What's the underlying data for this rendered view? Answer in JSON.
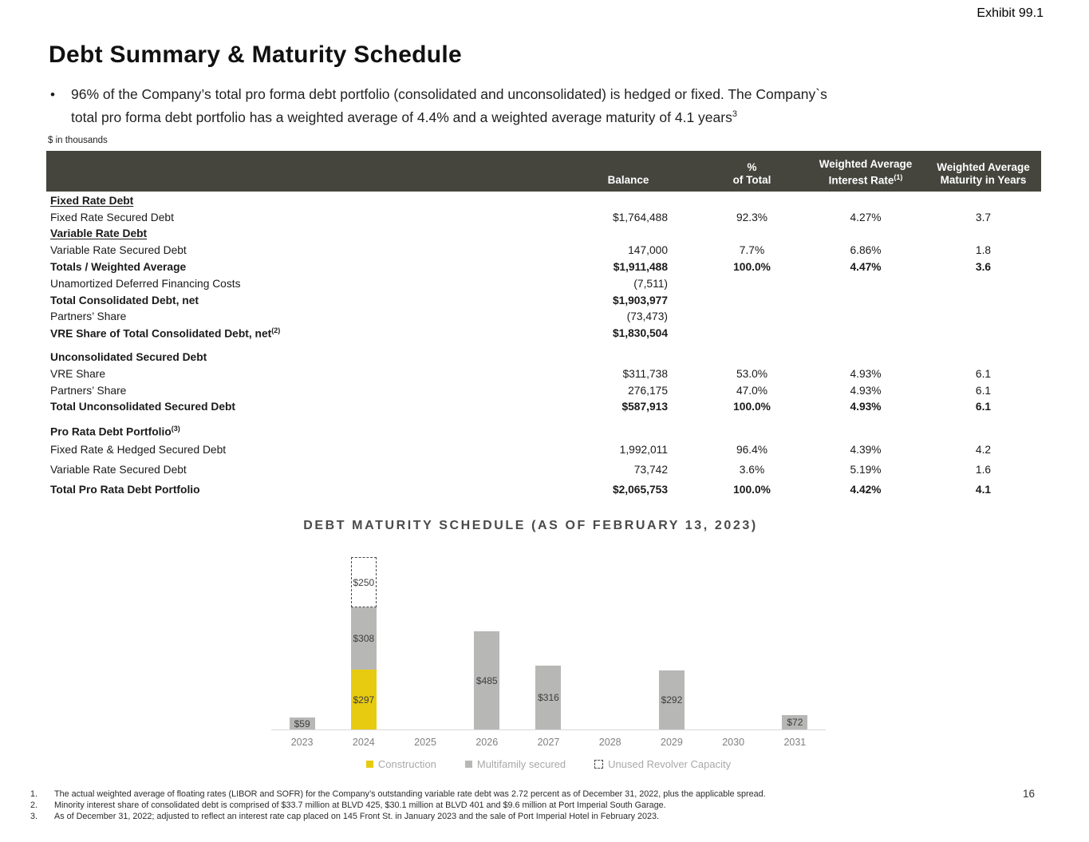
{
  "header": {
    "exhibit": "Exhibit 99.1",
    "title": "Debt Summary & Maturity Schedule",
    "bullet_line1": "96% of the Company’s total pro forma debt portfolio (consolidated and unconsolidated) is hedged or fixed. The Company`s",
    "bullet_line2": "total pro forma debt portfolio has a weighted average of 4.4% and a weighted average maturity of 4.1 years",
    "bullet_sup": "3"
  },
  "table": {
    "units": "$ in thousands",
    "header": {
      "balance": "Balance",
      "pct_line1": "%",
      "pct_line2": "of Total",
      "rate_line1": "Weighted Average",
      "rate_line2": "Interest Rate",
      "rate_sup": "(1)",
      "maturity_line1": "Weighted Average",
      "maturity_line2": "Maturity in Years"
    },
    "rows": [
      {
        "label": "Fixed Rate Debt",
        "bold": true,
        "underline": true,
        "balance": "",
        "pct": "",
        "rate": "",
        "maturity": ""
      },
      {
        "label": "Fixed Rate Secured Debt",
        "balance": "$1,764,488",
        "pct": "92.3%",
        "rate": "4.27%",
        "maturity": "3.7"
      },
      {
        "label": "Variable Rate Debt",
        "bold": true,
        "underline": true,
        "balance": "",
        "pct": "",
        "rate": "",
        "maturity": ""
      },
      {
        "label": "Variable Rate Secured Debt",
        "balance": "147,000",
        "pct": "7.7%",
        "rate": "6.86%",
        "maturity": "1.8"
      },
      {
        "label": "Totals / Weighted Average",
        "bold": true,
        "balance": "$1,911,488",
        "pct": "100.0%",
        "rate": "4.47%",
        "maturity": "3.6"
      },
      {
        "label": "Unamortized Deferred Financing Costs",
        "balance": "(7,511)",
        "pct": "",
        "rate": "",
        "maturity": ""
      },
      {
        "label": "Total Consolidated Debt, net",
        "bold": true,
        "balance": "$1,903,977",
        "pct": "",
        "rate": "",
        "maturity": ""
      },
      {
        "label": "Partners’ Share",
        "balance": "(73,473)",
        "pct": "",
        "rate": "",
        "maturity": ""
      },
      {
        "label": "VRE Share of Total Consolidated Debt, net",
        "sup": "(2)",
        "bold": true,
        "balance": "$1,830,504",
        "pct": "",
        "rate": "",
        "maturity": ""
      },
      {
        "label": "Unconsolidated Secured Debt",
        "bold": true,
        "section_start": true,
        "balance": "",
        "pct": "",
        "rate": "",
        "maturity": ""
      },
      {
        "label": "VRE Share",
        "balance": "$311,738",
        "pct": "53.0%",
        "rate": "4.93%",
        "maturity": "6.1"
      },
      {
        "label": "Partners’ Share",
        "balance": "276,175",
        "pct": "47.0%",
        "rate": "4.93%",
        "maturity": "6.1"
      },
      {
        "label": "Total Unconsolidated Secured Debt",
        "bold": true,
        "balance": "$587,913",
        "pct": "100.0%",
        "rate": "4.93%",
        "maturity": "6.1"
      },
      {
        "label": "Pro Rata Debt Portfolio",
        "sup": "(3)",
        "bold": true,
        "section_start": true,
        "hdr_row": true,
        "balance": "",
        "pct": "",
        "rate": "",
        "maturity": ""
      },
      {
        "label": "Fixed Rate & Hedged Secured Debt",
        "tall": true,
        "balance": "1,992,011",
        "pct": "96.4%",
        "rate": "4.39%",
        "maturity": "4.2"
      },
      {
        "label": "Variable Rate Secured Debt",
        "tall": true,
        "balance": "73,742",
        "pct": "3.6%",
        "rate": "5.19%",
        "maturity": "1.6"
      },
      {
        "label": "Total Pro Rata Debt Portfolio",
        "bold": true,
        "tall": true,
        "balance": "$2,065,753",
        "pct": "100.0%",
        "rate": "4.42%",
        "maturity": "4.1"
      }
    ]
  },
  "chart_data": {
    "type": "bar",
    "stacked": true,
    "title": "DEBT MATURITY SCHEDULE (AS OF FEBRUARY 13, 2023)",
    "value_prefix": "$",
    "categories": [
      "2023",
      "2024",
      "2025",
      "2026",
      "2027",
      "2028",
      "2029",
      "2030",
      "2031"
    ],
    "series": [
      {
        "name": "Construction",
        "color": "#e7cb11",
        "style": "solid",
        "values": [
          0,
          297,
          0,
          0,
          0,
          0,
          0,
          0,
          0
        ]
      },
      {
        "name": "Multifamily secured",
        "color": "#b7b7b6",
        "style": "solid",
        "values": [
          59,
          308,
          0,
          485,
          316,
          0,
          292,
          0,
          72
        ]
      },
      {
        "name": "Unused Revolver Capacity",
        "color": "#ffffff",
        "style": "dashed",
        "values": [
          0,
          250,
          0,
          0,
          0,
          0,
          0,
          0,
          0
        ]
      }
    ],
    "xlabel": "",
    "ylabel": "",
    "ylim": [
      0,
      885
    ],
    "grid": false,
    "legend_position": "bottom"
  },
  "footnotes": [
    "The actual weighted average of floating rates (LIBOR and SOFR) for the Company’s outstanding variable rate debt was 2.72 percent as of December 31, 2022, plus the applicable spread.",
    "Minority interest share of consolidated debt is comprised of $33.7 million at BLVD 425, $30.1 million at BLVD 401 and $9.6 million at Port Imperial South Garage.",
    "As of December 31, 2022; adjusted to reflect an interest rate cap placed on 145 Front St. in January 2023 and the sale of Port Imperial Hotel in February 2023."
  ],
  "footer": {
    "page_number": "16"
  },
  "colors": {
    "table_header_bg": "#45453e",
    "construction": "#e7cb11",
    "multifamily": "#b7b7b6",
    "axis_line": "#d9d9d9"
  }
}
